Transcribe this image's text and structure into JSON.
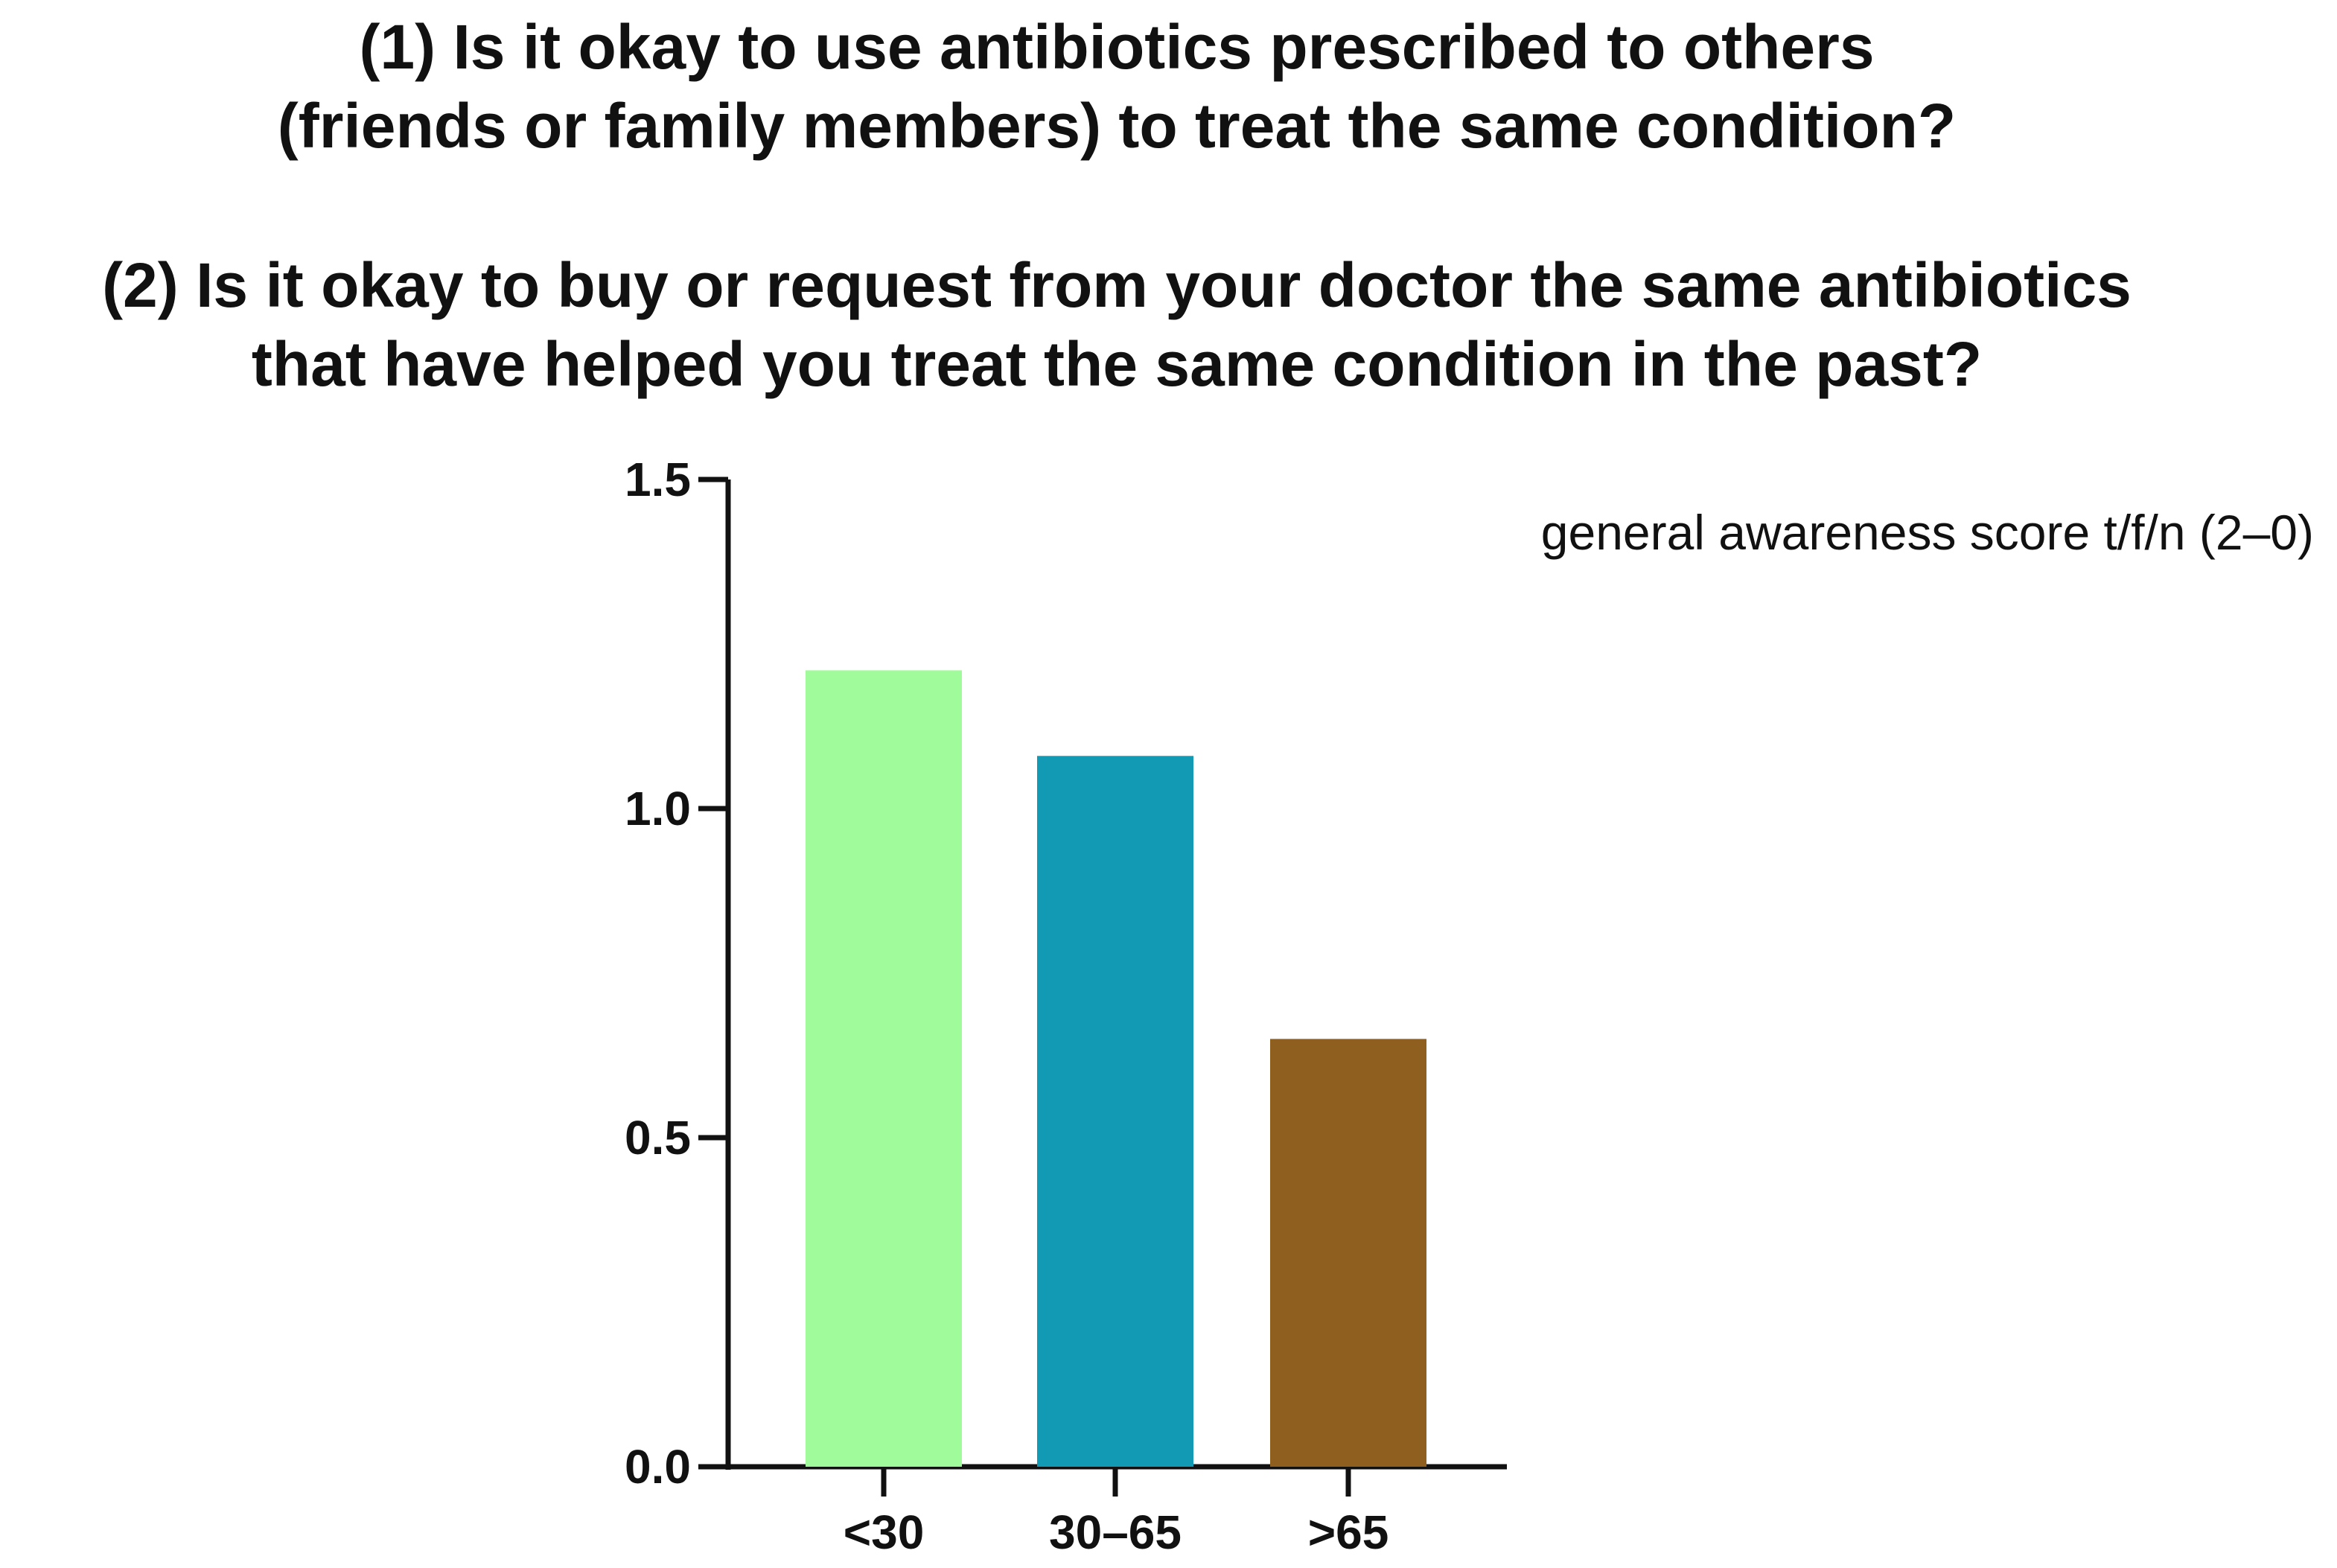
{
  "chart_data": {
    "type": "bar",
    "title_question1": [
      "(1) Is it okay to use antibiotics prescribed to others",
      "(friends or family members) to treat the same condition?"
    ],
    "title_question2": [
      "(2) Is it okay to buy or request from your doctor the same antibiotics",
      "that have helped you treat the same condition in the past?"
    ],
    "categories": [
      "<30",
      "30–65",
      ">65"
    ],
    "series": [
      {
        "name": "general awareness score t/f/n (2–0)",
        "values": [
          1.21,
          1.08,
          0.65
        ]
      }
    ],
    "colors": [
      "#a0fc9a",
      "#1299b3",
      "#8f5f1f"
    ],
    "ylim": [
      0,
      1.5
    ],
    "yticks": [
      0.0,
      0.5,
      1.0,
      1.5
    ],
    "ytick_labels": [
      "0.0",
      "0.5",
      "1.0",
      "1.5"
    ],
    "xlabel": "",
    "ylabel": "",
    "grid": false,
    "legend_position": "top-right"
  }
}
